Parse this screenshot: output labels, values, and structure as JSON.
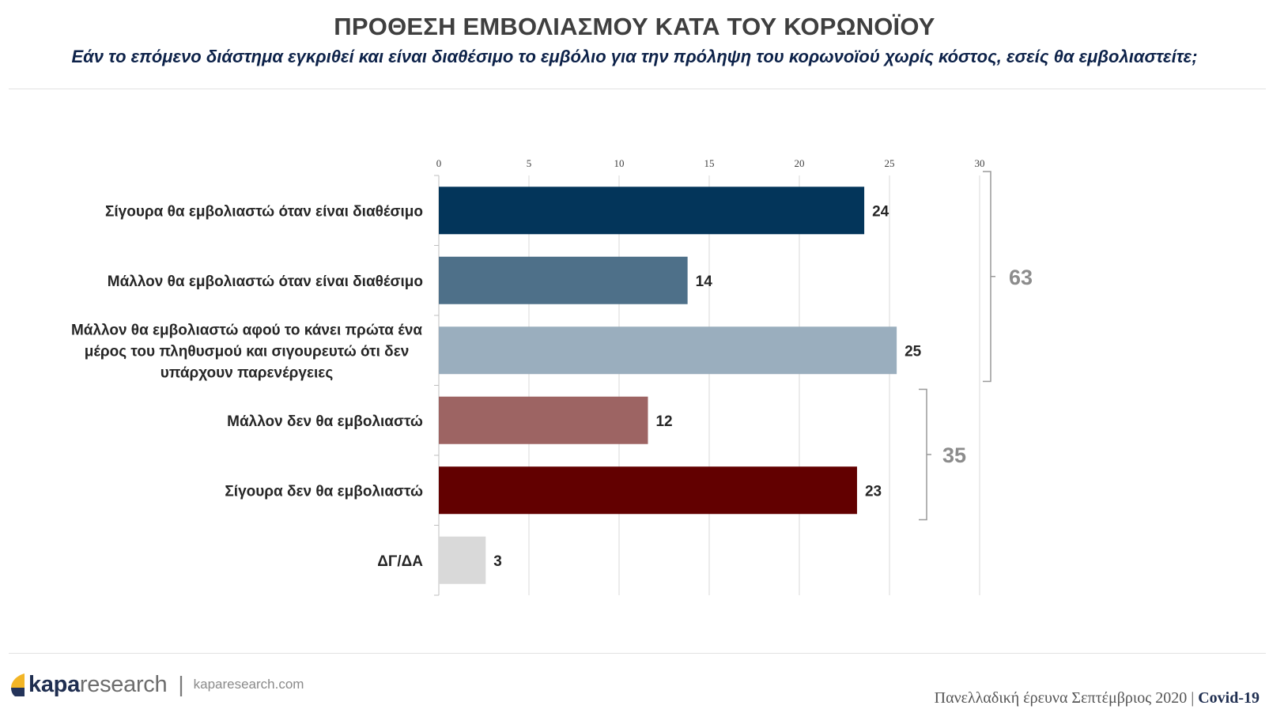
{
  "header": {
    "title": "ΠΡΟΘΕΣΗ ΕΜΒΟΛΙΑΣΜΟΥ ΚΑΤΑ ΤΟΥ ΚΟΡΩΝΟΪΟΥ",
    "subtitle": "Εάν το επόμενο διάστημα εγκριθεί και είναι διαθέσιμο το εμβόλιο για την πρόληψη του κορωνοϊού χωρίς κόστος, εσείς θα εμβολιαστείτε;"
  },
  "chart_data": {
    "type": "bar",
    "orientation": "horizontal",
    "xlim": [
      0,
      30
    ],
    "ticks": [
      0,
      5,
      10,
      15,
      20,
      25,
      30
    ],
    "tick_labels": [
      "0",
      "5",
      "10",
      "15",
      "20",
      "25",
      "30"
    ],
    "grid": true,
    "categories": [
      [
        "Σίγουρα θα εμβολιαστώ όταν είναι διαθέσιμο"
      ],
      [
        "Μάλλον θα εμβολιαστώ όταν είναι διαθέσιμο"
      ],
      [
        "Μάλλον θα εμβολιαστώ αφού το κάνει πρώτα ένα",
        "μέρος του πληθυσμού και σιγουρευτώ ότι δεν",
        "υπάρχουν παρενέργειες"
      ],
      [
        "Μάλλον δεν θα εμβολιαστώ"
      ],
      [
        "Σίγουρα δεν θα εμβολιαστώ"
      ],
      [
        "ΔΓ/ΔΑ"
      ]
    ],
    "values": [
      23.6,
      13.8,
      25.4,
      11.6,
      23.2,
      2.6
    ],
    "value_labels": [
      "24",
      "14",
      "25",
      "12",
      "23",
      "3"
    ],
    "colors": [
      "#03355a",
      "#4e7089",
      "#9aaebe",
      "#9d6463",
      "#620000",
      "#d9d9d9"
    ],
    "brackets": [
      {
        "from_index": 0,
        "to_index": 2,
        "label": "63"
      },
      {
        "from_index": 3,
        "to_index": 4,
        "label": "35"
      }
    ]
  },
  "footer": {
    "logo_part1": "kapa",
    "logo_part2": "research",
    "separator": "|",
    "url": "kaparesearch.com",
    "survey": "Πανελλαδική έρευνα Σεπτέμβριος 2020",
    "divider": "|",
    "topic": "Covid-19"
  }
}
